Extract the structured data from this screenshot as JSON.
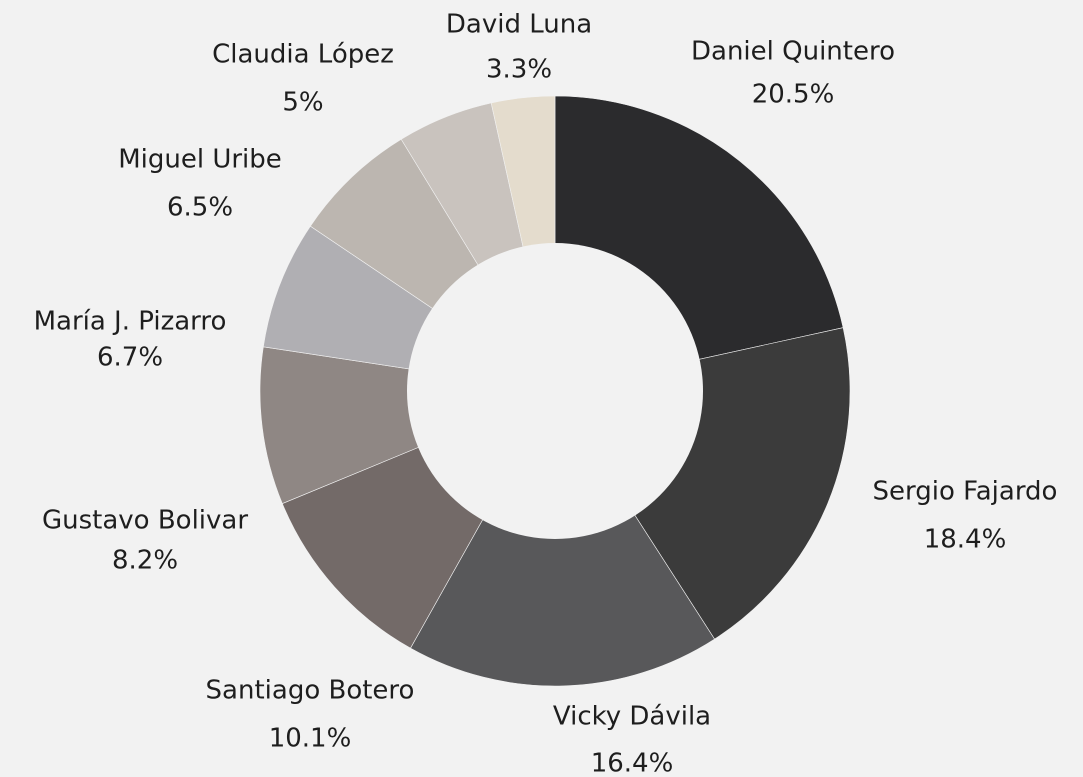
{
  "chart_data": {
    "type": "pie",
    "variant": "donut",
    "title": "",
    "slices": [
      {
        "label": "Daniel Quintero",
        "value": 20.5,
        "display": "20.5%",
        "color": "#2b2b2d"
      },
      {
        "label": "Sergio Fajardo",
        "value": 18.4,
        "display": "18.4%",
        "color": "#3b3b3b"
      },
      {
        "label": "Vicky Dávila",
        "value": 16.4,
        "display": "16.4%",
        "color": "#58585a"
      },
      {
        "label": "Santiago Botero",
        "value": 10.1,
        "display": "10.1%",
        "color": "#736a68"
      },
      {
        "label": "Gustavo Bolivar",
        "value": 8.2,
        "display": "8.2%",
        "color": "#8f8784"
      },
      {
        "label": "María J. Pizarro",
        "value": 6.7,
        "display": "6.7%",
        "color": "#b0afb3"
      },
      {
        "label": "Miguel Uribe",
        "value": 6.5,
        "display": "6.5%",
        "color": "#bcb6b0"
      },
      {
        "label": "Claudia López",
        "value": 5,
        "display": "5%",
        "color": "#c9c3be"
      },
      {
        "label": "David Luna",
        "value": 3.3,
        "display": "3.3%",
        "color": "#e4dccd"
      }
    ],
    "legend": "none",
    "labels": "outside"
  }
}
